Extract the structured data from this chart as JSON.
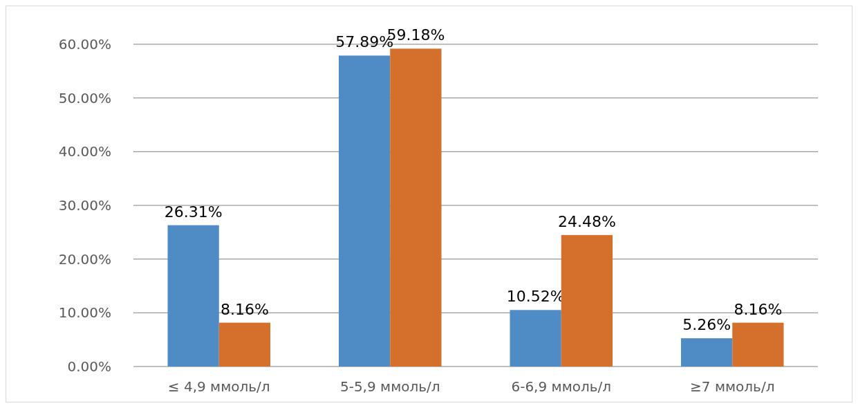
{
  "chart_data": {
    "type": "bar",
    "categories": [
      "≤ 4,9 ммоль/л",
      "5-5,9 ммоль/л",
      "6-6,9 ммоль/л",
      "≥7 ммоль/л"
    ],
    "series": [
      {
        "color": "#4f8bc4",
        "values": [
          26.31,
          57.89,
          10.52,
          5.26
        ],
        "value_labels": [
          "26.31%",
          "57.89%",
          "10.52%",
          "5.26%"
        ]
      },
      {
        "color": "#d4702b",
        "values": [
          8.16,
          59.18,
          24.48,
          8.16
        ],
        "value_labels": [
          "8.16%",
          "59.18%",
          "24.48%",
          "8.16%"
        ]
      }
    ],
    "ylim": [
      0,
      60
    ],
    "yticks": [
      {
        "value": 0,
        "label": "0.00%"
      },
      {
        "value": 10,
        "label": "10.00%"
      },
      {
        "value": 20,
        "label": "20.00%"
      },
      {
        "value": 30,
        "label": "30.00%"
      },
      {
        "value": 40,
        "label": "40.00%"
      },
      {
        "value": 50,
        "label": "50.00%"
      },
      {
        "value": 60,
        "label": "60.00%"
      }
    ],
    "grid": "y"
  }
}
